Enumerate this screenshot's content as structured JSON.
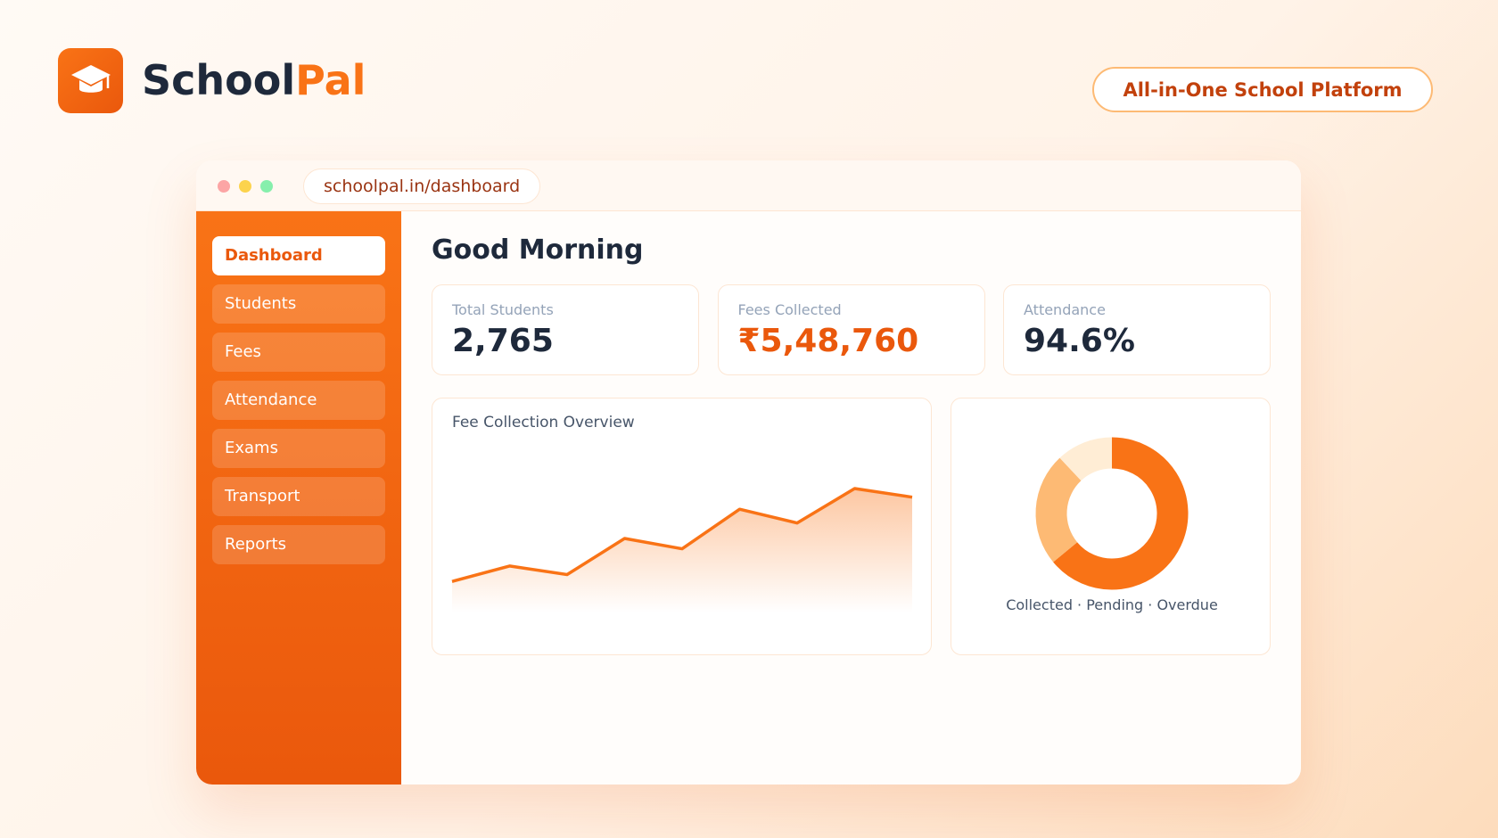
{
  "brand": {
    "name_dark": "School",
    "name_accent": "Pal"
  },
  "badge": "All-in-One School Platform",
  "browser": {
    "url": "schoolpal.in/dashboard"
  },
  "nav": [
    "Dashboard",
    "Students",
    "Fees",
    "Attendance",
    "Exams",
    "Transport",
    "Reports"
  ],
  "greeting": "Good Morning",
  "stats": [
    {
      "label": "Total Students",
      "value": "2,765"
    },
    {
      "label": "Fees Collected",
      "value": "₹5,48,760"
    },
    {
      "label": "Attendance",
      "value": "94.6%"
    }
  ],
  "charts": [
    {
      "type": "line",
      "title": "Fee Collection Overview",
      "values": [
        18,
        27,
        22,
        43,
        37,
        60,
        52,
        72,
        67
      ],
      "ylim": [
        0,
        100
      ],
      "color": "#f97316"
    },
    {
      "type": "pie",
      "values": [
        64,
        24,
        12
      ],
      "colors": [
        "#f97316",
        "#fdba74",
        "#ffedd5"
      ],
      "caption": "Collected · Pending · Overdue"
    }
  ]
}
